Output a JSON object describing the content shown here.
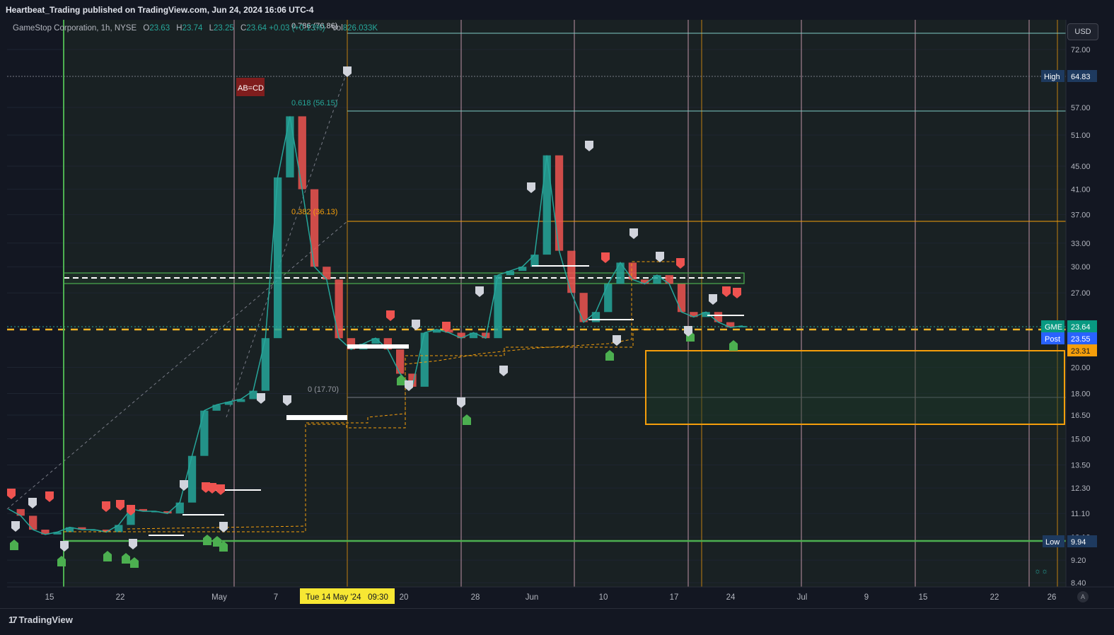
{
  "header": {
    "publisher_line": "Heartbeat_Trading published on TradingView.com, Jun 24, 2024 16:06 UTC-4"
  },
  "legend": {
    "symbol": "GameStop Corporation, 1h, NYSE",
    "o_label": "O",
    "o_value": "23.63",
    "h_label": "H",
    "h_value": "23.74",
    "l_label": "L",
    "l_value": "23.25",
    "c_label": "C",
    "c_value": "23.64",
    "change": "+0.03 (+0.13%)",
    "vol_label": "Vol",
    "vol_value": "826.033K"
  },
  "currency": "USD",
  "crosshair_date": "Tue 14 May '24   09:30",
  "footer": {
    "brand": "TradingView",
    "auto": "A"
  },
  "colors": {
    "background": "#131722",
    "up": "#26a69a",
    "down": "#ef5350",
    "green_line": "#4caf50",
    "orange": "#f59e0b",
    "yellow_dash": "#f0b429",
    "white_line": "#ffffff",
    "teal_line": "#80cbc4",
    "pink_vline": "#f8bbd0"
  },
  "chart_data": {
    "type": "line",
    "title": "GameStop Corporation, 1h, NYSE",
    "scale": "log",
    "ylim": [
      8.4,
      72.0
    ],
    "y_ticks": [
      "72.00",
      "57.00",
      "51.00",
      "45.00",
      "41.00",
      "37.00",
      "33.00",
      "30.00",
      "27.00",
      "20.00",
      "18.00",
      "16.50",
      "15.00",
      "13.50",
      "12.30",
      "11.10",
      "10.10",
      "9.20",
      "8.40"
    ],
    "x_ticks": [
      "15",
      "22",
      "May",
      "7",
      "14",
      "20",
      "28",
      "Jun",
      "10",
      "17",
      "24",
      "Jul",
      "9",
      "15",
      "22",
      "26"
    ],
    "series": [
      {
        "values": [
          11.3,
          11.0,
          10.4,
          10.2,
          10.3,
          10.5,
          10.4,
          10.4,
          10.3,
          10.6,
          11.3,
          11.2,
          11.2,
          11.1,
          11.6,
          14.0,
          16.8,
          17.2,
          17.4,
          17.6,
          18.2,
          22.5,
          43.0,
          55.0,
          41.0,
          30.0,
          28.5,
          22.5,
          21.5,
          22.0,
          22.5,
          21.5,
          19.5,
          18.5,
          23.0,
          23.3,
          23.0,
          22.5,
          23.0,
          22.5,
          29.0,
          29.5,
          30.0,
          31.5,
          47.0,
          32.0,
          27.0,
          24.0,
          25.0,
          28.0,
          30.5,
          28.5,
          28.0,
          29.0,
          28.0,
          25.0,
          24.5,
          25.0,
          24.0,
          23.5,
          23.64
        ]
      }
    ],
    "price_labels": [
      {
        "label": "High",
        "value": "64.83"
      },
      {
        "label": "GME",
        "value": "23.64"
      },
      {
        "label": "Post",
        "value": "23.55"
      },
      {
        "label": "",
        "value": "23.31"
      },
      {
        "label": "Low",
        "value": "9.94"
      }
    ],
    "fib_levels": [
      {
        "label": "0.786 (76.86)"
      },
      {
        "label": "0.618 (56.15)"
      },
      {
        "label": "0.382 (36.13)"
      },
      {
        "label": "0 (17.70)"
      }
    ],
    "pattern_label": "AB=CD"
  }
}
